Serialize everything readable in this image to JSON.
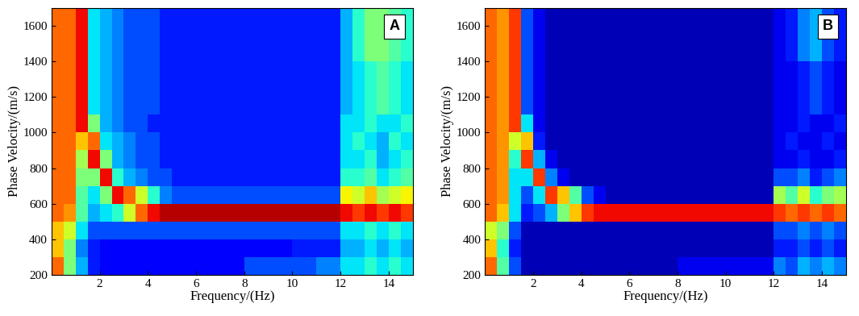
{
  "chart_data": [
    {
      "type": "heatmap",
      "panel_label": "A",
      "x_label": "Frequency/(Hz)",
      "y_label": "Phase Velocity/(m/s)",
      "xlim": [
        0,
        15
      ],
      "xticks": [
        2,
        4,
        6,
        8,
        10,
        12,
        14
      ],
      "ylim": [
        200,
        1700
      ],
      "yticks": [
        200,
        400,
        600,
        800,
        1000,
        1200,
        1400,
        1600
      ],
      "x_edges": [
        0,
        0.5,
        1,
        1.5,
        2,
        2.5,
        3,
        3.5,
        4,
        4.5,
        5,
        5.5,
        6,
        6.5,
        7,
        7.5,
        8,
        8.5,
        9,
        9.5,
        10,
        10.5,
        11,
        11.5,
        12,
        12.5,
        13,
        13.5,
        14,
        14.5,
        15
      ],
      "y_edges": [
        200,
        300,
        400,
        500,
        600,
        700,
        800,
        900,
        1000,
        1100,
        1200,
        1300,
        1400,
        1500,
        1600,
        1700
      ],
      "color_range": [
        0,
        1
      ],
      "cells": [
        [
          0.8,
          0.5,
          0.3,
          0.15,
          0.12,
          0.12,
          0.12,
          0.12,
          0.12,
          0.12,
          0.12,
          0.12,
          0.12,
          0.12,
          0.12,
          0.12,
          0.2,
          0.2,
          0.2,
          0.2,
          0.2,
          0.2,
          0.25,
          0.25,
          0.35,
          0.35,
          0.4,
          0.35,
          0.4,
          0.35
        ],
        [
          0.7,
          0.5,
          0.25,
          0.15,
          0.12,
          0.12,
          0.12,
          0.12,
          0.12,
          0.12,
          0.12,
          0.12,
          0.12,
          0.12,
          0.12,
          0.12,
          0.12,
          0.12,
          0.12,
          0.12,
          0.15,
          0.15,
          0.15,
          0.15,
          0.3,
          0.3,
          0.35,
          0.3,
          0.35,
          0.3
        ],
        [
          0.7,
          0.6,
          0.35,
          0.2,
          0.2,
          0.2,
          0.2,
          0.2,
          0.2,
          0.2,
          0.2,
          0.2,
          0.2,
          0.2,
          0.2,
          0.2,
          0.2,
          0.2,
          0.2,
          0.2,
          0.2,
          0.2,
          0.2,
          0.2,
          0.35,
          0.35,
          0.4,
          0.35,
          0.4,
          0.35
        ],
        [
          0.8,
          0.75,
          0.45,
          0.3,
          0.35,
          0.4,
          0.6,
          0.8,
          0.9,
          0.95,
          0.95,
          0.95,
          0.95,
          0.95,
          0.95,
          0.95,
          0.95,
          0.95,
          0.95,
          0.95,
          0.95,
          0.95,
          0.95,
          0.95,
          0.9,
          0.85,
          0.9,
          0.85,
          0.9,
          0.85
        ],
        [
          0.8,
          0.8,
          0.45,
          0.35,
          0.5,
          0.9,
          0.8,
          0.6,
          0.4,
          0.25,
          0.2,
          0.2,
          0.2,
          0.2,
          0.2,
          0.2,
          0.2,
          0.2,
          0.2,
          0.2,
          0.2,
          0.2,
          0.2,
          0.2,
          0.65,
          0.6,
          0.7,
          0.55,
          0.6,
          0.65
        ],
        [
          0.8,
          0.8,
          0.5,
          0.5,
          0.9,
          0.4,
          0.3,
          0.25,
          0.2,
          0.2,
          0.15,
          0.15,
          0.15,
          0.15,
          0.15,
          0.15,
          0.15,
          0.15,
          0.15,
          0.15,
          0.15,
          0.15,
          0.15,
          0.15,
          0.4,
          0.4,
          0.45,
          0.35,
          0.4,
          0.45
        ],
        [
          0.8,
          0.8,
          0.55,
          0.9,
          0.5,
          0.3,
          0.25,
          0.2,
          0.2,
          0.15,
          0.15,
          0.15,
          0.15,
          0.15,
          0.15,
          0.15,
          0.15,
          0.15,
          0.15,
          0.15,
          0.15,
          0.15,
          0.15,
          0.15,
          0.35,
          0.35,
          0.4,
          0.3,
          0.35,
          0.4
        ],
        [
          0.8,
          0.8,
          0.7,
          0.8,
          0.35,
          0.3,
          0.25,
          0.2,
          0.2,
          0.15,
          0.15,
          0.15,
          0.15,
          0.15,
          0.15,
          0.15,
          0.15,
          0.15,
          0.15,
          0.15,
          0.15,
          0.15,
          0.15,
          0.15,
          0.35,
          0.4,
          0.35,
          0.3,
          0.4,
          0.35
        ],
        [
          0.8,
          0.8,
          0.9,
          0.5,
          0.3,
          0.25,
          0.2,
          0.2,
          0.15,
          0.15,
          0.15,
          0.15,
          0.15,
          0.15,
          0.15,
          0.15,
          0.15,
          0.15,
          0.15,
          0.15,
          0.15,
          0.15,
          0.15,
          0.15,
          0.35,
          0.35,
          0.4,
          0.35,
          0.35,
          0.4
        ],
        [
          0.8,
          0.8,
          0.9,
          0.35,
          0.3,
          0.25,
          0.2,
          0.2,
          0.2,
          0.15,
          0.15,
          0.15,
          0.15,
          0.15,
          0.15,
          0.15,
          0.15,
          0.15,
          0.15,
          0.15,
          0.15,
          0.15,
          0.15,
          0.15,
          0.3,
          0.35,
          0.4,
          0.45,
          0.4,
          0.35
        ],
        [
          0.8,
          0.8,
          0.9,
          0.35,
          0.3,
          0.25,
          0.2,
          0.2,
          0.2,
          0.15,
          0.15,
          0.15,
          0.15,
          0.15,
          0.15,
          0.15,
          0.15,
          0.15,
          0.15,
          0.15,
          0.15,
          0.15,
          0.15,
          0.15,
          0.3,
          0.35,
          0.4,
          0.45,
          0.4,
          0.35
        ],
        [
          0.8,
          0.8,
          0.9,
          0.35,
          0.3,
          0.25,
          0.2,
          0.2,
          0.2,
          0.15,
          0.15,
          0.15,
          0.15,
          0.15,
          0.15,
          0.15,
          0.15,
          0.15,
          0.15,
          0.15,
          0.15,
          0.15,
          0.15,
          0.15,
          0.3,
          0.35,
          0.4,
          0.45,
          0.4,
          0.35
        ],
        [
          0.8,
          0.8,
          0.9,
          0.35,
          0.3,
          0.25,
          0.2,
          0.2,
          0.2,
          0.15,
          0.15,
          0.15,
          0.15,
          0.15,
          0.15,
          0.15,
          0.15,
          0.15,
          0.15,
          0.15,
          0.15,
          0.15,
          0.15,
          0.15,
          0.3,
          0.4,
          0.5,
          0.5,
          0.45,
          0.4
        ],
        [
          0.8,
          0.8,
          0.9,
          0.35,
          0.3,
          0.25,
          0.2,
          0.2,
          0.2,
          0.15,
          0.15,
          0.15,
          0.15,
          0.15,
          0.15,
          0.15,
          0.15,
          0.15,
          0.15,
          0.15,
          0.15,
          0.15,
          0.15,
          0.15,
          0.3,
          0.4,
          0.5,
          0.5,
          0.45,
          0.4
        ],
        [
          0.8,
          0.8,
          0.9,
          0.35,
          0.3,
          0.25,
          0.2,
          0.2,
          0.2,
          0.15,
          0.15,
          0.15,
          0.15,
          0.15,
          0.15,
          0.15,
          0.15,
          0.15,
          0.15,
          0.15,
          0.15,
          0.15,
          0.15,
          0.15,
          0.3,
          0.4,
          0.5,
          0.5,
          0.45,
          0.4
        ]
      ]
    },
    {
      "type": "heatmap",
      "panel_label": "B",
      "x_label": "Frequency/(Hz)",
      "y_label": "Phase Velocity/(m/s)",
      "xlim": [
        0,
        15
      ],
      "xticks": [
        2,
        4,
        6,
        8,
        10,
        12,
        14
      ],
      "ylim": [
        200,
        1700
      ],
      "yticks": [
        200,
        400,
        600,
        800,
        1000,
        1200,
        1400,
        1600
      ],
      "x_edges": [
        0,
        0.5,
        1,
        1.5,
        2,
        2.5,
        3,
        3.5,
        4,
        4.5,
        5,
        5.5,
        6,
        6.5,
        7,
        7.5,
        8,
        8.5,
        9,
        9.5,
        10,
        10.5,
        11,
        11.5,
        12,
        12.5,
        13,
        13.5,
        14,
        14.5,
        15
      ],
      "y_edges": [
        200,
        300,
        400,
        500,
        600,
        700,
        800,
        900,
        1000,
        1100,
        1200,
        1300,
        1400,
        1500,
        1600,
        1700
      ],
      "color_range": [
        0,
        1
      ],
      "cells": [
        [
          0.8,
          0.45,
          0.2,
          0.05,
          0.05,
          0.05,
          0.05,
          0.05,
          0.05,
          0.05,
          0.05,
          0.05,
          0.05,
          0.05,
          0.05,
          0.05,
          0.1,
          0.1,
          0.1,
          0.1,
          0.1,
          0.1,
          0.1,
          0.1,
          0.25,
          0.2,
          0.3,
          0.25,
          0.3,
          0.25
        ],
        [
          0.7,
          0.4,
          0.15,
          0.05,
          0.05,
          0.05,
          0.05,
          0.05,
          0.05,
          0.05,
          0.05,
          0.05,
          0.05,
          0.05,
          0.05,
          0.05,
          0.05,
          0.05,
          0.05,
          0.05,
          0.05,
          0.05,
          0.05,
          0.05,
          0.15,
          0.15,
          0.2,
          0.15,
          0.2,
          0.15
        ],
        [
          0.6,
          0.5,
          0.2,
          0.05,
          0.05,
          0.05,
          0.05,
          0.05,
          0.05,
          0.05,
          0.05,
          0.05,
          0.05,
          0.05,
          0.05,
          0.05,
          0.05,
          0.05,
          0.05,
          0.05,
          0.05,
          0.05,
          0.05,
          0.05,
          0.2,
          0.2,
          0.25,
          0.2,
          0.25,
          0.2
        ],
        [
          0.8,
          0.7,
          0.35,
          0.15,
          0.2,
          0.3,
          0.5,
          0.7,
          0.85,
          0.9,
          0.9,
          0.9,
          0.9,
          0.9,
          0.9,
          0.9,
          0.9,
          0.9,
          0.9,
          0.9,
          0.9,
          0.9,
          0.9,
          0.9,
          0.85,
          0.8,
          0.85,
          0.8,
          0.85,
          0.8
        ],
        [
          0.8,
          0.75,
          0.35,
          0.2,
          0.35,
          0.85,
          0.7,
          0.45,
          0.2,
          0.1,
          0.05,
          0.05,
          0.05,
          0.05,
          0.05,
          0.05,
          0.05,
          0.05,
          0.05,
          0.05,
          0.05,
          0.05,
          0.05,
          0.05,
          0.55,
          0.45,
          0.6,
          0.4,
          0.5,
          0.55
        ],
        [
          0.8,
          0.75,
          0.35,
          0.35,
          0.85,
          0.25,
          0.1,
          0.05,
          0.05,
          0.05,
          0.05,
          0.05,
          0.05,
          0.05,
          0.05,
          0.05,
          0.05,
          0.05,
          0.05,
          0.05,
          0.05,
          0.05,
          0.05,
          0.05,
          0.2,
          0.2,
          0.25,
          0.15,
          0.2,
          0.25
        ],
        [
          0.8,
          0.75,
          0.4,
          0.85,
          0.3,
          0.1,
          0.05,
          0.05,
          0.05,
          0.05,
          0.05,
          0.05,
          0.05,
          0.05,
          0.05,
          0.05,
          0.05,
          0.05,
          0.05,
          0.05,
          0.05,
          0.05,
          0.05,
          0.05,
          0.1,
          0.1,
          0.15,
          0.1,
          0.1,
          0.15
        ],
        [
          0.8,
          0.75,
          0.6,
          0.7,
          0.15,
          0.05,
          0.05,
          0.05,
          0.05,
          0.05,
          0.05,
          0.05,
          0.05,
          0.05,
          0.05,
          0.05,
          0.05,
          0.05,
          0.05,
          0.05,
          0.05,
          0.05,
          0.05,
          0.05,
          0.1,
          0.15,
          0.1,
          0.1,
          0.15,
          0.1
        ],
        [
          0.8,
          0.75,
          0.85,
          0.35,
          0.1,
          0.05,
          0.05,
          0.05,
          0.05,
          0.05,
          0.05,
          0.05,
          0.05,
          0.05,
          0.05,
          0.05,
          0.05,
          0.05,
          0.05,
          0.05,
          0.05,
          0.05,
          0.05,
          0.05,
          0.1,
          0.1,
          0.15,
          0.1,
          0.1,
          0.15
        ],
        [
          0.8,
          0.75,
          0.85,
          0.2,
          0.1,
          0.05,
          0.05,
          0.05,
          0.05,
          0.05,
          0.05,
          0.05,
          0.05,
          0.05,
          0.05,
          0.05,
          0.05,
          0.05,
          0.05,
          0.05,
          0.05,
          0.05,
          0.05,
          0.05,
          0.1,
          0.1,
          0.15,
          0.2,
          0.15,
          0.1
        ],
        [
          0.8,
          0.75,
          0.85,
          0.2,
          0.1,
          0.05,
          0.05,
          0.05,
          0.05,
          0.05,
          0.05,
          0.05,
          0.05,
          0.05,
          0.05,
          0.05,
          0.05,
          0.05,
          0.05,
          0.05,
          0.05,
          0.05,
          0.05,
          0.05,
          0.1,
          0.1,
          0.15,
          0.2,
          0.15,
          0.1
        ],
        [
          0.8,
          0.75,
          0.85,
          0.2,
          0.1,
          0.05,
          0.05,
          0.05,
          0.05,
          0.05,
          0.05,
          0.05,
          0.05,
          0.05,
          0.05,
          0.05,
          0.05,
          0.05,
          0.05,
          0.05,
          0.05,
          0.05,
          0.05,
          0.05,
          0.1,
          0.1,
          0.15,
          0.2,
          0.15,
          0.1
        ],
        [
          0.8,
          0.75,
          0.85,
          0.2,
          0.1,
          0.05,
          0.05,
          0.05,
          0.05,
          0.05,
          0.05,
          0.05,
          0.05,
          0.05,
          0.05,
          0.05,
          0.05,
          0.05,
          0.05,
          0.05,
          0.05,
          0.05,
          0.05,
          0.05,
          0.1,
          0.15,
          0.25,
          0.3,
          0.2,
          0.15
        ],
        [
          0.8,
          0.75,
          0.85,
          0.2,
          0.1,
          0.05,
          0.05,
          0.05,
          0.05,
          0.05,
          0.05,
          0.05,
          0.05,
          0.05,
          0.05,
          0.05,
          0.05,
          0.05,
          0.05,
          0.05,
          0.05,
          0.05,
          0.05,
          0.05,
          0.1,
          0.15,
          0.25,
          0.3,
          0.2,
          0.15
        ],
        [
          0.8,
          0.75,
          0.85,
          0.2,
          0.1,
          0.05,
          0.05,
          0.05,
          0.05,
          0.05,
          0.05,
          0.05,
          0.05,
          0.05,
          0.05,
          0.05,
          0.05,
          0.05,
          0.05,
          0.05,
          0.05,
          0.05,
          0.05,
          0.05,
          0.1,
          0.15,
          0.25,
          0.3,
          0.2,
          0.15
        ]
      ]
    }
  ]
}
